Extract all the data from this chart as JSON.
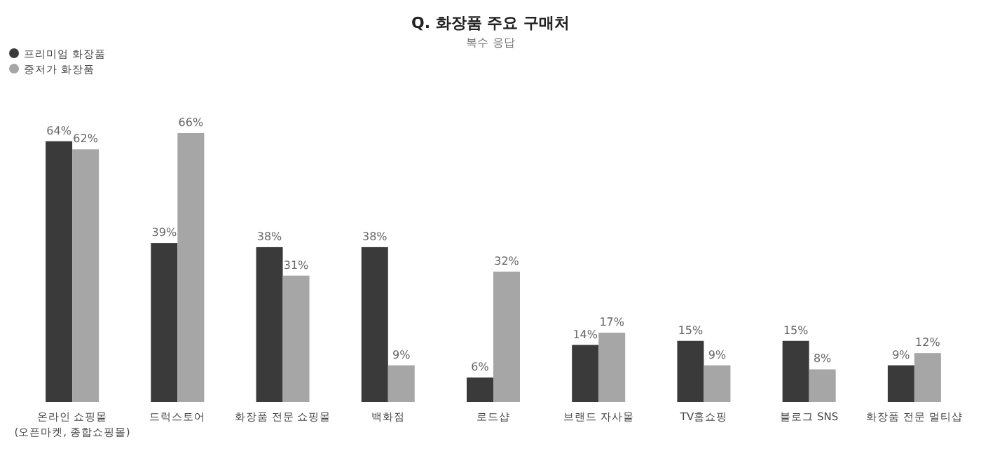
{
  "chart_data": {
    "type": "bar",
    "title": "Q. 화장품 주요 구매처",
    "subtitle": "복수 응답",
    "categories": [
      "온라인 쇼핑몰\n(오픈마켓, 종합쇼핑몰)",
      "드럭스토어",
      "화장품 전문 쇼핑몰",
      "백화점",
      "로드샵",
      "브랜드 자사몰",
      "TV홈쇼핑",
      "블로그 SNS",
      "화장품 전문 멀티샵"
    ],
    "series": [
      {
        "name": "프리미엄 화장품",
        "color": "#3a3a3a",
        "values": [
          64,
          39,
          38,
          38,
          6,
          14,
          15,
          15,
          9
        ],
        "value_labels": [
          "64%",
          "39%",
          "38%",
          "38%",
          "6%",
          "14%",
          "15%",
          "15%",
          "9%"
        ]
      },
      {
        "name": "중저가 화장품",
        "color": "#a6a6a6",
        "values": [
          62,
          66,
          31,
          9,
          32,
          17,
          9,
          8,
          12
        ],
        "value_labels": [
          "62%",
          "66%",
          "31%",
          "9%",
          "32%",
          "17%",
          "9%",
          "8%",
          "12%"
        ]
      }
    ],
    "legend": "top left",
    "grid": false
  }
}
